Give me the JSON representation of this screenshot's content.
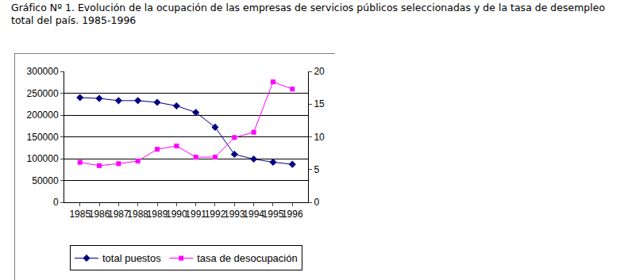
{
  "chart_data": {
    "type": "line",
    "title": "Gráfico Nº 1. Evolución de la ocupación de las empresas de servicios públicos seleccionadas y de la tasa de desempleo total del país. 1985-1996",
    "categories": [
      "1985",
      "1986",
      "1987",
      "1988",
      "1989",
      "1990",
      "1991",
      "1992",
      "1993",
      "1994",
      "1995",
      "1996"
    ],
    "series": [
      {
        "name": "total puestos",
        "color": "#000080",
        "marker": "diamond",
        "values": [
          240000,
          238000,
          233000,
          233000,
          229000,
          221000,
          206000,
          172000,
          110000,
          99000,
          92000,
          87000
        ]
      },
      {
        "name": "tasa de desocupación",
        "color": "#ff00ff",
        "marker": "square",
        "axis": "y2",
        "values": [
          6.1,
          5.6,
          5.9,
          6.3,
          8.1,
          8.6,
          6.9,
          6.9,
          9.9,
          10.7,
          18.4,
          17.3
        ]
      }
    ],
    "ylim": [
      0,
      300000
    ],
    "yticks": [
      0,
      50000,
      100000,
      150000,
      200000,
      250000,
      300000
    ],
    "y2lim": [
      0,
      20
    ],
    "y2ticks": [
      0,
      5,
      10,
      15,
      20
    ],
    "grid": true,
    "legend": "bottom"
  }
}
